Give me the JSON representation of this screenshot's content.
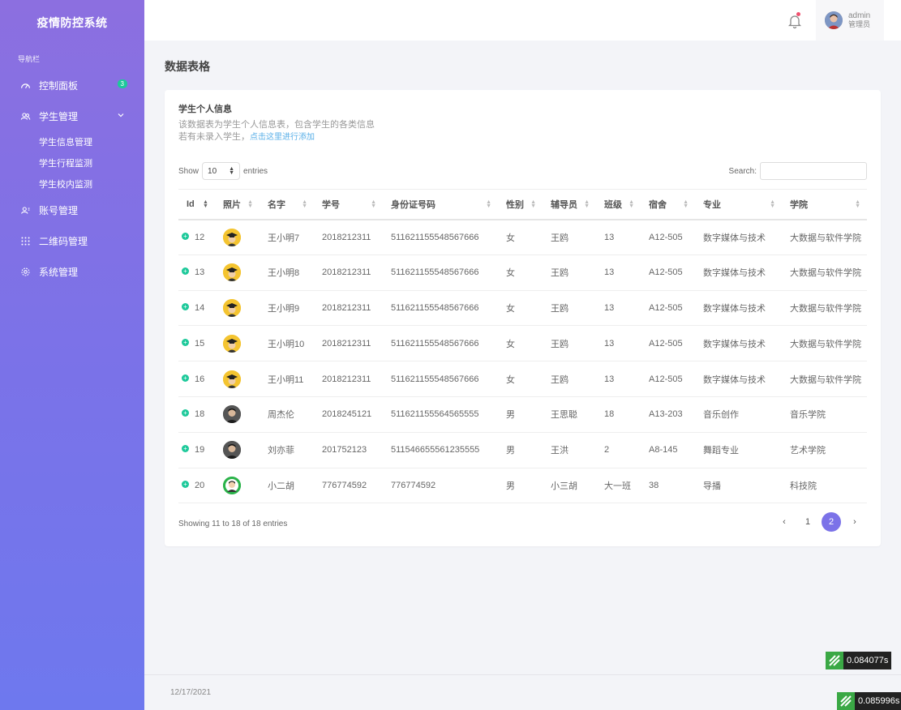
{
  "sidebar": {
    "brand": "疫情防控系统",
    "heading": "导航栏",
    "items": [
      {
        "label": "控制面板",
        "badge": "3"
      },
      {
        "label": "学生管理"
      },
      {
        "label": "账号管理"
      },
      {
        "label": "二维码管理"
      },
      {
        "label": "系统管理"
      }
    ],
    "sub_items": [
      "学生信息管理",
      "学生行程监测",
      "学生校内监测"
    ]
  },
  "topbar": {
    "user_name": "admin",
    "user_role": "管理员"
  },
  "page": {
    "title": "数据表格"
  },
  "card": {
    "title": "学生个人信息",
    "desc": "该数据表为学生个人信息表，包含学生的各类信息",
    "desc2_prefix": "若有未录入学生，",
    "desc2_link": "点击这里进行添加",
    "show_label": "Show",
    "show_value": "10",
    "entries_label": "entries",
    "search_label": "Search:",
    "search_placeholder": ""
  },
  "table": {
    "headers": [
      "Id",
      "照片",
      "名字",
      "学号",
      "身份证号码",
      "性别",
      "辅导员",
      "班级",
      "宿舍",
      "专业",
      "学院"
    ],
    "rows": [
      {
        "id": "12",
        "photo": "grad",
        "name": "王小明7",
        "sno": "2018212311",
        "idno": "511621155548567666",
        "sex": "女",
        "tutor": "王鸥",
        "cls": "13",
        "dorm": "A12-505",
        "major": "数字媒体与技术",
        "college": "大数据与软件学院"
      },
      {
        "id": "13",
        "photo": "grad",
        "name": "王小明8",
        "sno": "2018212311",
        "idno": "511621155548567666",
        "sex": "女",
        "tutor": "王鸥",
        "cls": "13",
        "dorm": "A12-505",
        "major": "数字媒体与技术",
        "college": "大数据与软件学院"
      },
      {
        "id": "14",
        "photo": "grad",
        "name": "王小明9",
        "sno": "2018212311",
        "idno": "511621155548567666",
        "sex": "女",
        "tutor": "王鸥",
        "cls": "13",
        "dorm": "A12-505",
        "major": "数字媒体与技术",
        "college": "大数据与软件学院"
      },
      {
        "id": "15",
        "photo": "grad",
        "name": "王小明10",
        "sno": "2018212311",
        "idno": "511621155548567666",
        "sex": "女",
        "tutor": "王鸥",
        "cls": "13",
        "dorm": "A12-505",
        "major": "数字媒体与技术",
        "college": "大数据与软件学院"
      },
      {
        "id": "16",
        "photo": "grad",
        "name": "王小明11",
        "sno": "2018212311",
        "idno": "511621155548567666",
        "sex": "女",
        "tutor": "王鸥",
        "cls": "13",
        "dorm": "A12-505",
        "major": "数字媒体与技术",
        "college": "大数据与软件学院"
      },
      {
        "id": "18",
        "photo": "dark",
        "name": "周杰伦",
        "sno": "2018245121",
        "idno": "511621155564565555",
        "sex": "男",
        "tutor": "王思聪",
        "cls": "18",
        "dorm": "A13-203",
        "major": "音乐创作",
        "college": "音乐学院"
      },
      {
        "id": "19",
        "photo": "dark",
        "name": "刘亦菲",
        "sno": "201752123",
        "idno": "511546655561235555",
        "sex": "男",
        "tutor": "王洪",
        "cls": "2",
        "dorm": "A8-145",
        "major": "舞蹈专业",
        "college": "艺术学院"
      },
      {
        "id": "20",
        "photo": "green",
        "name": "小二胡",
        "sno": "776774592",
        "idno": "776774592",
        "sex": "男",
        "tutor": "小三胡",
        "cls": "大一班",
        "dorm": "38",
        "major": "导播",
        "college": "科技院"
      }
    ]
  },
  "pagination": {
    "info": "Showing 11 to 18 of 18 entries",
    "prev": "‹",
    "pages": [
      "1",
      "2"
    ],
    "active": "2",
    "next": "›"
  },
  "footer": {
    "date": "12/17/2021"
  },
  "timers": [
    "0.084077s",
    "0.085996s"
  ],
  "icons": {
    "dashboard": "speedometer-icon",
    "students": "users-icon",
    "accounts": "user-icon",
    "qrcode": "grid-icon",
    "settings": "gear-icon"
  },
  "colors": {
    "accent": "#7b72e8",
    "badge": "#1dc99a",
    "link": "#5bb0e8"
  }
}
